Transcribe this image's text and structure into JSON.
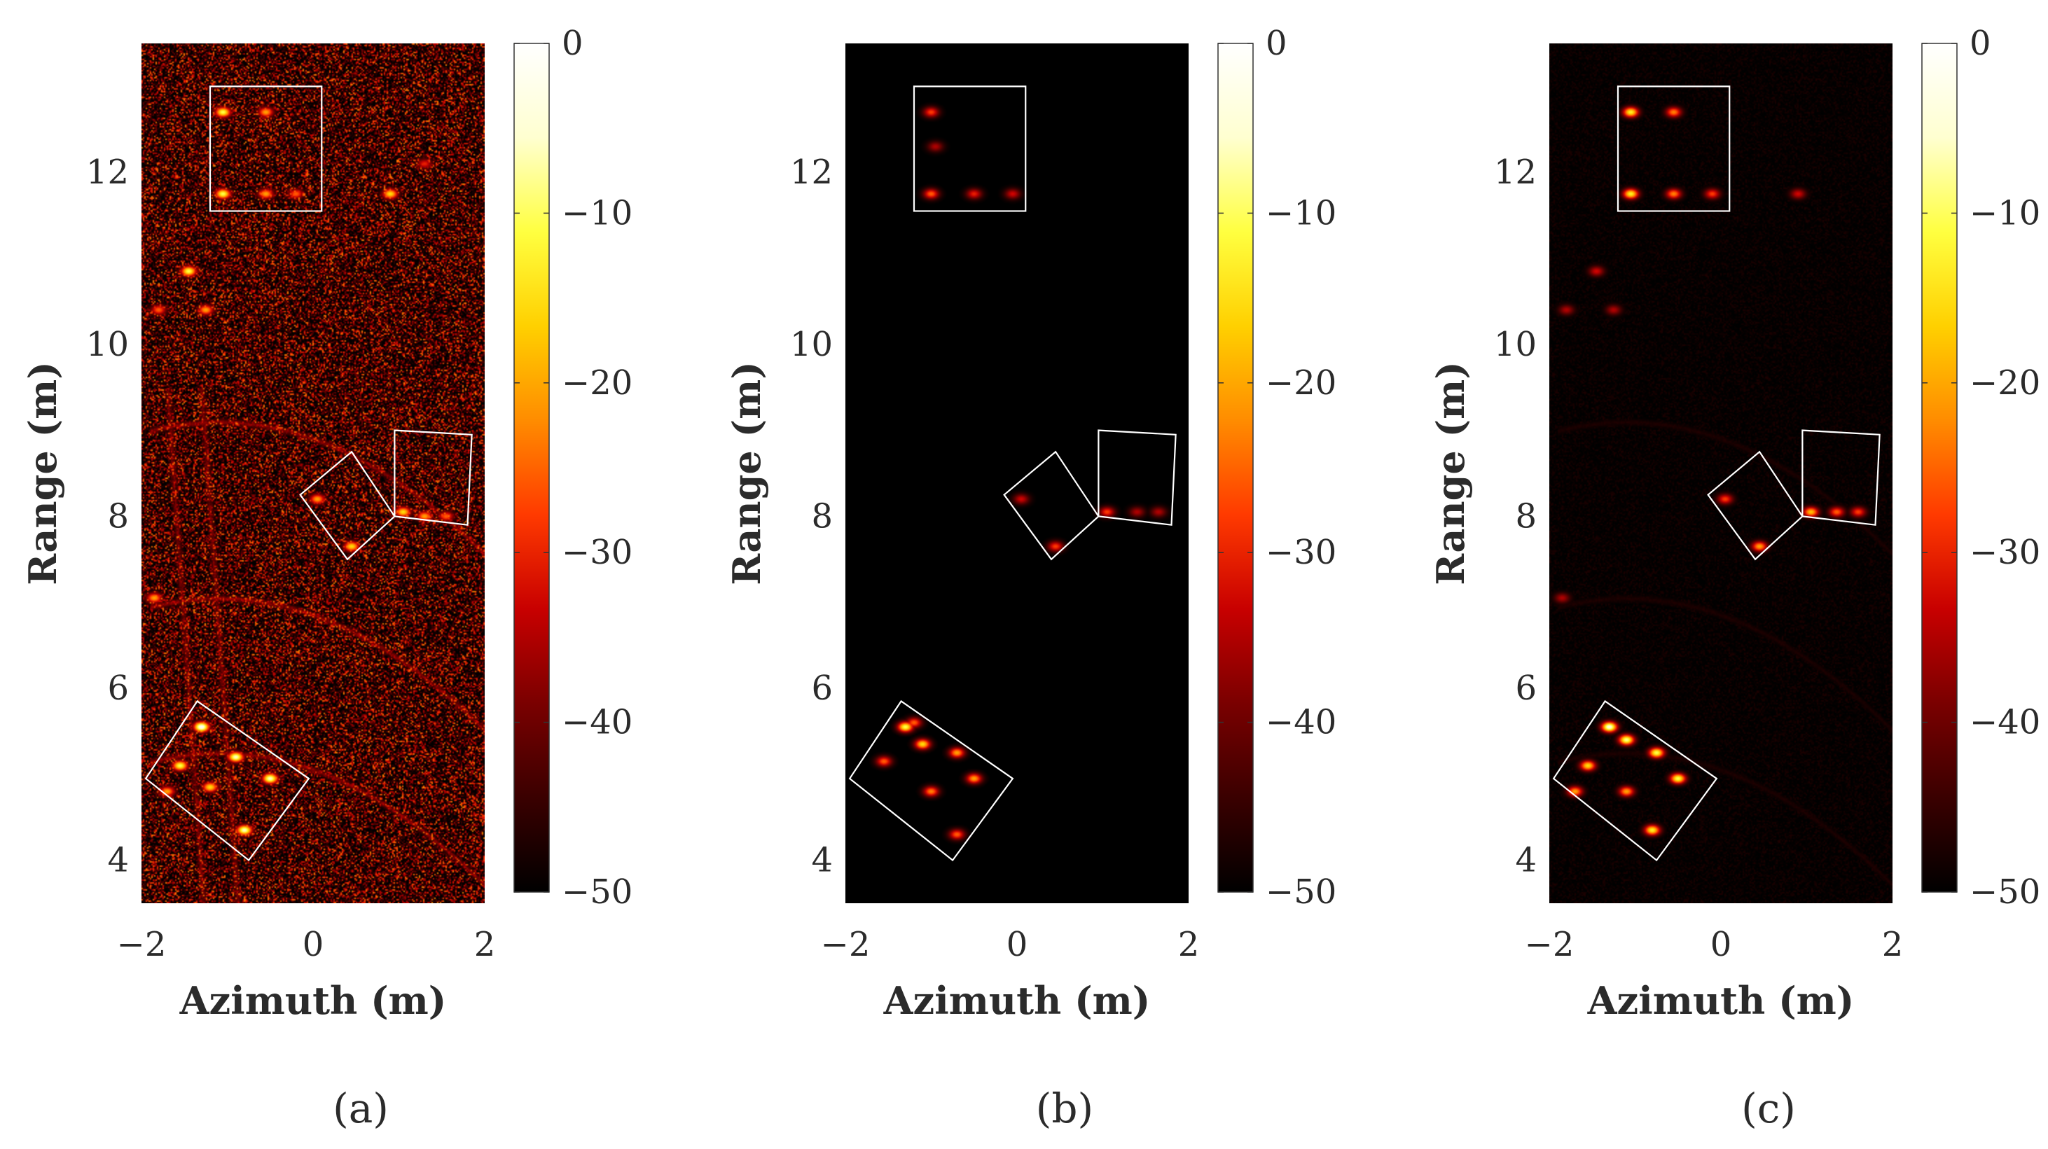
{
  "figure": {
    "colormap": {
      "stops": [
        "#000000",
        "#3a0000",
        "#7a0000",
        "#c80000",
        "#ff3a00",
        "#ff8c00",
        "#ffd000",
        "#ffff40",
        "#ffffd0",
        "#ffffff"
      ]
    }
  },
  "chart_data": [
    {
      "type": "heatmap",
      "caption": "(a)",
      "xlabel": "Azimuth (m)",
      "ylabel": "Range (m)",
      "xlim": [
        -2,
        2
      ],
      "ylim": [
        3.5,
        13.5
      ],
      "xticks": [
        -2,
        0,
        2
      ],
      "xtick_labels": [
        "−2",
        "0",
        "2"
      ],
      "yticks": [
        4,
        6,
        8,
        10,
        12
      ],
      "ytick_labels": [
        "4",
        "6",
        "8",
        "10",
        "12"
      ],
      "colorbar": {
        "range": [
          -50,
          0
        ],
        "ticks": [
          0,
          -10,
          -20,
          -30,
          -40,
          -50
        ],
        "tick_labels": [
          "0",
          "−10",
          "−20",
          "−30",
          "−40",
          "−50"
        ]
      },
      "noise_level": 0.55,
      "arcs": true,
      "boxes": [
        [
          [
            -1.2,
            13.0
          ],
          [
            0.1,
            13.0
          ],
          [
            0.1,
            11.55
          ],
          [
            -1.2,
            11.55
          ]
        ],
        [
          [
            -0.15,
            8.25
          ],
          [
            0.45,
            8.75
          ],
          [
            0.95,
            8.0
          ],
          [
            0.4,
            7.5
          ]
        ],
        [
          [
            0.95,
            8.0
          ],
          [
            1.8,
            7.9
          ],
          [
            1.85,
            8.95
          ],
          [
            0.95,
            9.0
          ]
        ],
        [
          [
            -1.95,
            4.95
          ],
          [
            -1.35,
            5.85
          ],
          [
            -0.05,
            4.95
          ],
          [
            -0.75,
            4.0
          ]
        ]
      ],
      "scatterers": [
        [
          -1.05,
          12.7,
          0.8
        ],
        [
          -0.55,
          12.7,
          0.6
        ],
        [
          -1.05,
          11.75,
          0.8
        ],
        [
          -0.55,
          11.75,
          0.6
        ],
        [
          -0.2,
          11.75,
          0.5
        ],
        [
          0.9,
          11.75,
          0.7
        ],
        [
          1.3,
          12.1,
          0.4
        ],
        [
          -1.45,
          10.85,
          0.8
        ],
        [
          -1.25,
          10.4,
          0.6
        ],
        [
          -1.8,
          10.4,
          0.5
        ],
        [
          0.05,
          8.2,
          0.6
        ],
        [
          0.45,
          7.65,
          0.7
        ],
        [
          1.05,
          8.05,
          0.7
        ],
        [
          1.3,
          8.0,
          0.6
        ],
        [
          1.55,
          8.0,
          0.5
        ],
        [
          -1.85,
          7.05,
          0.6
        ],
        [
          -1.3,
          5.55,
          1.0
        ],
        [
          -1.55,
          5.1,
          0.8
        ],
        [
          -0.9,
          5.2,
          0.9
        ],
        [
          -0.5,
          4.95,
          0.9
        ],
        [
          -0.8,
          4.35,
          0.9
        ],
        [
          -1.2,
          4.85,
          0.7
        ],
        [
          -1.7,
          4.8,
          0.6
        ]
      ]
    },
    {
      "type": "heatmap",
      "caption": "(b)",
      "xlabel": "Azimuth (m)",
      "ylabel": "Range (m)",
      "xlim": [
        -2,
        2
      ],
      "ylim": [
        3.5,
        13.5
      ],
      "xticks": [
        -2,
        0,
        2
      ],
      "xtick_labels": [
        "−2",
        "0",
        "2"
      ],
      "yticks": [
        4,
        6,
        8,
        10,
        12
      ],
      "ytick_labels": [
        "4",
        "6",
        "8",
        "10",
        "12"
      ],
      "colorbar": {
        "range": [
          -50,
          0
        ],
        "ticks": [
          0,
          -10,
          -20,
          -30,
          -40,
          -50
        ],
        "tick_labels": [
          "0",
          "−10",
          "−20",
          "−30",
          "−40",
          "−50"
        ]
      },
      "noise_level": 0,
      "arcs": false,
      "boxes": [
        [
          [
            -1.2,
            13.0
          ],
          [
            0.1,
            13.0
          ],
          [
            0.1,
            11.55
          ],
          [
            -1.2,
            11.55
          ]
        ],
        [
          [
            -0.15,
            8.25
          ],
          [
            0.45,
            8.75
          ],
          [
            0.95,
            8.0
          ],
          [
            0.4,
            7.5
          ]
        ],
        [
          [
            0.95,
            8.0
          ],
          [
            1.8,
            7.9
          ],
          [
            1.85,
            8.95
          ],
          [
            0.95,
            9.0
          ]
        ],
        [
          [
            -1.95,
            4.95
          ],
          [
            -1.35,
            5.85
          ],
          [
            -0.05,
            4.95
          ],
          [
            -0.75,
            4.0
          ]
        ]
      ],
      "scatterers": [
        [
          -1.0,
          12.7,
          0.45
        ],
        [
          -1.0,
          11.75,
          0.5
        ],
        [
          -0.5,
          11.75,
          0.4
        ],
        [
          -0.05,
          11.75,
          0.35
        ],
        [
          -0.95,
          12.3,
          0.3
        ],
        [
          0.05,
          8.2,
          0.35
        ],
        [
          0.45,
          7.65,
          0.45
        ],
        [
          1.05,
          8.05,
          0.45
        ],
        [
          1.4,
          8.05,
          0.3
        ],
        [
          1.65,
          8.05,
          0.3
        ],
        [
          -1.3,
          5.55,
          0.8
        ],
        [
          -1.1,
          5.35,
          0.7
        ],
        [
          -0.7,
          5.25,
          0.6
        ],
        [
          -1.55,
          5.15,
          0.5
        ],
        [
          -0.5,
          4.95,
          0.6
        ],
        [
          -1.0,
          4.8,
          0.55
        ],
        [
          -0.7,
          4.3,
          0.5
        ],
        [
          -1.2,
          5.6,
          0.5
        ]
      ]
    },
    {
      "type": "heatmap",
      "caption": "(c)",
      "xlabel": "Azimuth (m)",
      "ylabel": "Range (m)",
      "xlim": [
        -2,
        2
      ],
      "ylim": [
        3.5,
        13.5
      ],
      "xticks": [
        -2,
        0,
        2
      ],
      "xtick_labels": [
        "−2",
        "0",
        "2"
      ],
      "yticks": [
        4,
        6,
        8,
        10,
        12
      ],
      "ytick_labels": [
        "4",
        "6",
        "8",
        "10",
        "12"
      ],
      "colorbar": {
        "range": [
          -50,
          0
        ],
        "ticks": [
          0,
          -10,
          -20,
          -30,
          -40,
          -50
        ],
        "tick_labels": [
          "0",
          "−10",
          "−20",
          "−30",
          "−40",
          "−50"
        ]
      },
      "noise_level": 0.06,
      "arcs": true,
      "boxes": [
        [
          [
            -1.2,
            13.0
          ],
          [
            0.1,
            13.0
          ],
          [
            0.1,
            11.55
          ],
          [
            -1.2,
            11.55
          ]
        ],
        [
          [
            -0.15,
            8.25
          ],
          [
            0.45,
            8.75
          ],
          [
            0.95,
            8.0
          ],
          [
            0.4,
            7.5
          ]
        ],
        [
          [
            0.95,
            8.0
          ],
          [
            1.8,
            7.9
          ],
          [
            1.85,
            8.95
          ],
          [
            0.95,
            9.0
          ]
        ],
        [
          [
            -1.95,
            4.95
          ],
          [
            -1.35,
            5.85
          ],
          [
            -0.05,
            4.95
          ],
          [
            -0.75,
            4.0
          ]
        ]
      ],
      "scatterers": [
        [
          -1.05,
          12.7,
          0.75
        ],
        [
          -0.55,
          12.7,
          0.55
        ],
        [
          -1.05,
          11.75,
          0.75
        ],
        [
          -0.55,
          11.75,
          0.55
        ],
        [
          -0.1,
          11.75,
          0.45
        ],
        [
          0.9,
          11.75,
          0.35
        ],
        [
          -1.45,
          10.85,
          0.35
        ],
        [
          -1.25,
          10.4,
          0.3
        ],
        [
          -1.8,
          10.4,
          0.3
        ],
        [
          0.05,
          8.2,
          0.45
        ],
        [
          0.45,
          7.65,
          0.6
        ],
        [
          1.05,
          8.05,
          0.65
        ],
        [
          1.35,
          8.05,
          0.5
        ],
        [
          1.6,
          8.05,
          0.45
        ],
        [
          -1.85,
          7.05,
          0.3
        ],
        [
          -1.3,
          5.55,
          0.95
        ],
        [
          -1.1,
          5.4,
          0.85
        ],
        [
          -0.75,
          5.25,
          0.8
        ],
        [
          -1.55,
          5.1,
          0.7
        ],
        [
          -0.5,
          4.95,
          0.8
        ],
        [
          -0.8,
          4.35,
          0.75
        ],
        [
          -1.1,
          4.8,
          0.6
        ],
        [
          -1.7,
          4.8,
          0.6
        ]
      ]
    }
  ]
}
